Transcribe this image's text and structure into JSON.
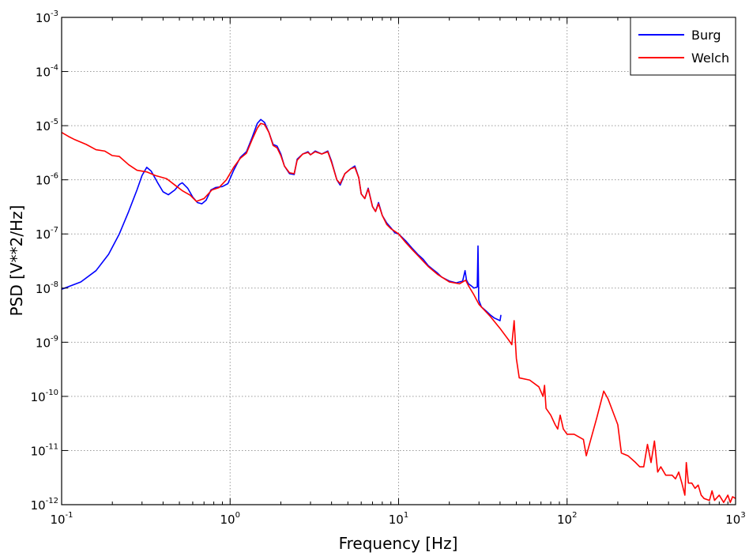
{
  "chart_data": {
    "type": "line",
    "title": "",
    "xlabel": "Frequency [Hz]",
    "ylabel": "PSD [V**2/Hz]",
    "xscale": "log",
    "yscale": "log",
    "xlim": [
      0.1,
      1000
    ],
    "ylim": [
      1e-12,
      0.001
    ],
    "grid": true,
    "legend_position": "top-right",
    "x_ticks": [
      {
        "base": "10",
        "exp": "-1",
        "value": 0.1
      },
      {
        "base": "10",
        "exp": "0",
        "value": 1
      },
      {
        "base": "10",
        "exp": "1",
        "value": 10
      },
      {
        "base": "10",
        "exp": "2",
        "value": 100
      },
      {
        "base": "10",
        "exp": "3",
        "value": 1000
      }
    ],
    "y_ticks": [
      {
        "base": "10",
        "exp": "-3",
        "value": 0.001
      },
      {
        "base": "10",
        "exp": "-4",
        "value": 0.0001
      },
      {
        "base": "10",
        "exp": "-5",
        "value": 1e-05
      },
      {
        "base": "10",
        "exp": "-6",
        "value": 1e-06
      },
      {
        "base": "10",
        "exp": "-7",
        "value": 1e-07
      },
      {
        "base": "10",
        "exp": "-8",
        "value": 1e-08
      },
      {
        "base": "10",
        "exp": "-9",
        "value": 1e-09
      },
      {
        "base": "10",
        "exp": "-10",
        "value": 1e-10
      },
      {
        "base": "10",
        "exp": "-11",
        "value": 1e-11
      },
      {
        "base": "10",
        "exp": "-12",
        "value": 1e-12
      }
    ],
    "series": [
      {
        "name": "Burg",
        "color": "#0000ff",
        "points": [
          [
            0.1,
            9.5e-09
          ],
          [
            0.13,
            1.3e-08
          ],
          [
            0.16,
            2.1e-08
          ],
          [
            0.19,
            4.2e-08
          ],
          [
            0.22,
            1e-07
          ],
          [
            0.25,
            2.6e-07
          ],
          [
            0.28,
            6.5e-07
          ],
          [
            0.3,
            1.2e-06
          ],
          [
            0.32,
            1.7e-06
          ],
          [
            0.34,
            1.45e-06
          ],
          [
            0.37,
            9e-07
          ],
          [
            0.4,
            6e-07
          ],
          [
            0.43,
            5.3e-07
          ],
          [
            0.47,
            6.5e-07
          ],
          [
            0.5,
            8.2e-07
          ],
          [
            0.52,
            8.8e-07
          ],
          [
            0.56,
            7e-07
          ],
          [
            0.6,
            4.8e-07
          ],
          [
            0.64,
            3.8e-07
          ],
          [
            0.68,
            3.6e-07
          ],
          [
            0.72,
            4.2e-07
          ],
          [
            0.77,
            6.5e-07
          ],
          [
            0.82,
            7.2e-07
          ],
          [
            0.9,
            7.5e-07
          ],
          [
            0.97,
            8.5e-07
          ],
          [
            1.05,
            1.5e-06
          ],
          [
            1.15,
            2.6e-06
          ],
          [
            1.25,
            3.3e-06
          ],
          [
            1.35,
            6e-06
          ],
          [
            1.45,
            1.1e-05
          ],
          [
            1.52,
            1.3e-05
          ],
          [
            1.6,
            1.15e-05
          ],
          [
            1.7,
            7.5e-06
          ],
          [
            1.8,
            4.5e-06
          ],
          [
            1.9,
            4.2e-06
          ],
          [
            2.0,
            3e-06
          ],
          [
            2.1,
            1.8e-06
          ],
          [
            2.25,
            1.3e-06
          ],
          [
            2.4,
            1.25e-06
          ],
          [
            2.5,
            2.4e-06
          ],
          [
            2.7,
            3e-06
          ],
          [
            2.9,
            3.3e-06
          ],
          [
            3.0,
            2.9e-06
          ],
          [
            3.2,
            3.4e-06
          ],
          [
            3.5,
            3e-06
          ],
          [
            3.8,
            3.4e-06
          ],
          [
            4.0,
            2.2e-06
          ],
          [
            4.3,
            1e-06
          ],
          [
            4.5,
            8e-07
          ],
          [
            4.8,
            1.3e-06
          ],
          [
            5.2,
            1.6e-06
          ],
          [
            5.5,
            1.8e-06
          ],
          [
            5.8,
            1.1e-06
          ],
          [
            6.0,
            5.5e-07
          ],
          [
            6.3,
            4.5e-07
          ],
          [
            6.6,
            7e-07
          ],
          [
            7.0,
            3.2e-07
          ],
          [
            7.3,
            2.6e-07
          ],
          [
            7.6,
            3.8e-07
          ],
          [
            8.0,
            2.2e-07
          ],
          [
            8.5,
            1.6e-07
          ],
          [
            9.0,
            1.3e-07
          ],
          [
            9.5,
            1.05e-07
          ],
          [
            10.0,
            1e-07
          ],
          [
            11.0,
            7.5e-08
          ],
          [
            12.0,
            5.5e-08
          ],
          [
            13.0,
            4.2e-08
          ],
          [
            14.0,
            3.4e-08
          ],
          [
            15.0,
            2.6e-08
          ],
          [
            16.0,
            2.2e-08
          ],
          [
            17.0,
            1.9e-08
          ],
          [
            18.0,
            1.6e-08
          ],
          [
            20.0,
            1.35e-08
          ],
          [
            22.0,
            1.25e-08
          ],
          [
            24.0,
            1.35e-08
          ],
          [
            24.8,
            2.1e-08
          ],
          [
            25.3,
            1.4e-08
          ],
          [
            26.0,
            1.2e-08
          ],
          [
            27.0,
            1.1e-08
          ],
          [
            28.0,
            1e-08
          ],
          [
            29.3,
            1.05e-08
          ],
          [
            29.6,
            6e-08
          ],
          [
            29.9,
            6e-09
          ],
          [
            31.0,
            4.5e-09
          ],
          [
            33.0,
            3.8e-09
          ],
          [
            35.0,
            3.2e-09
          ],
          [
            37.0,
            2.8e-09
          ],
          [
            39.0,
            2.6e-09
          ],
          [
            40.0,
            2.5e-09
          ],
          [
            40.5,
            3.2e-09
          ]
        ]
      },
      {
        "name": "Welch",
        "color": "#ff0000",
        "points": [
          [
            0.1,
            7.5e-06
          ],
          [
            0.11,
            6.3e-06
          ],
          [
            0.12,
            5.5e-06
          ],
          [
            0.14,
            4.5e-06
          ],
          [
            0.16,
            3.6e-06
          ],
          [
            0.18,
            3.4e-06
          ],
          [
            0.2,
            2.8e-06
          ],
          [
            0.22,
            2.7e-06
          ],
          [
            0.25,
            1.9e-06
          ],
          [
            0.28,
            1.5e-06
          ],
          [
            0.32,
            1.4e-06
          ],
          [
            0.36,
            1.2e-06
          ],
          [
            0.42,
            1.05e-06
          ],
          [
            0.47,
            8e-07
          ],
          [
            0.52,
            6.3e-07
          ],
          [
            0.58,
            5.2e-07
          ],
          [
            0.63,
            4e-07
          ],
          [
            0.7,
            4.5e-07
          ],
          [
            0.78,
            6.5e-07
          ],
          [
            0.86,
            7.2e-07
          ],
          [
            0.95,
            1e-06
          ],
          [
            1.05,
            1.7e-06
          ],
          [
            1.15,
            2.5e-06
          ],
          [
            1.25,
            3.1e-06
          ],
          [
            1.35,
            5.5e-06
          ],
          [
            1.45,
            9e-06
          ],
          [
            1.52,
            1.1e-05
          ],
          [
            1.6,
            1.05e-05
          ],
          [
            1.7,
            7.5e-06
          ],
          [
            1.8,
            4.3e-06
          ],
          [
            1.9,
            3.9e-06
          ],
          [
            2.0,
            2.8e-06
          ],
          [
            2.1,
            1.8e-06
          ],
          [
            2.25,
            1.35e-06
          ],
          [
            2.4,
            1.3e-06
          ],
          [
            2.5,
            2.3e-06
          ],
          [
            2.7,
            3e-06
          ],
          [
            2.9,
            3.2e-06
          ],
          [
            3.0,
            2.9e-06
          ],
          [
            3.2,
            3.3e-06
          ],
          [
            3.5,
            3e-06
          ],
          [
            3.8,
            3.3e-06
          ],
          [
            4.0,
            2.1e-06
          ],
          [
            4.3,
            1e-06
          ],
          [
            4.5,
            8.5e-07
          ],
          [
            4.8,
            1.3e-06
          ],
          [
            5.2,
            1.6e-06
          ],
          [
            5.5,
            1.7e-06
          ],
          [
            5.8,
            1.1e-06
          ],
          [
            6.0,
            5.5e-07
          ],
          [
            6.3,
            4.5e-07
          ],
          [
            6.6,
            6.8e-07
          ],
          [
            7.0,
            3.2e-07
          ],
          [
            7.3,
            2.6e-07
          ],
          [
            7.6,
            3.6e-07
          ],
          [
            8.0,
            2.2e-07
          ],
          [
            8.5,
            1.5e-07
          ],
          [
            9.0,
            1.25e-07
          ],
          [
            10.0,
            1e-07
          ],
          [
            11.0,
            7e-08
          ],
          [
            12.0,
            5.2e-08
          ],
          [
            13.0,
            4e-08
          ],
          [
            15.0,
            2.5e-08
          ],
          [
            17.0,
            1.8e-08
          ],
          [
            20.0,
            1.3e-08
          ],
          [
            23.0,
            1.2e-08
          ],
          [
            25.0,
            1.4e-08
          ],
          [
            26.0,
            1.1e-08
          ],
          [
            28.0,
            7.5e-09
          ],
          [
            30.0,
            5e-09
          ],
          [
            35.0,
            3e-09
          ],
          [
            40.0,
            1.8e-09
          ],
          [
            45.0,
            1.1e-09
          ],
          [
            47.0,
            9e-10
          ],
          [
            48.5,
            2.5e-09
          ],
          [
            50.0,
            5e-10
          ],
          [
            52.0,
            2.2e-10
          ],
          [
            60.0,
            2e-10
          ],
          [
            68.0,
            1.5e-10
          ],
          [
            72.0,
            1e-10
          ],
          [
            73.5,
            1.6e-10
          ],
          [
            75.0,
            6e-11
          ],
          [
            80.0,
            4.5e-11
          ],
          [
            85.0,
            3e-11
          ],
          [
            88.0,
            2.5e-11
          ],
          [
            91.0,
            4.5e-11
          ],
          [
            95.0,
            2.5e-11
          ],
          [
            100.0,
            2e-11
          ],
          [
            110.0,
            2e-11
          ],
          [
            125.0,
            1.6e-11
          ],
          [
            130.0,
            8e-12
          ],
          [
            150.0,
            4e-11
          ],
          [
            165.0,
            1.25e-10
          ],
          [
            175.0,
            9e-11
          ],
          [
            200.0,
            3e-11
          ],
          [
            210.0,
            9e-12
          ],
          [
            230.0,
            8e-12
          ],
          [
            255.0,
            6e-12
          ],
          [
            270.0,
            5e-12
          ],
          [
            285.0,
            5e-12
          ],
          [
            300.0,
            1.3e-11
          ],
          [
            315.0,
            6e-12
          ],
          [
            330.0,
            1.5e-11
          ],
          [
            345.0,
            4e-12
          ],
          [
            360.0,
            5e-12
          ],
          [
            385.0,
            3.5e-12
          ],
          [
            420.0,
            3.5e-12
          ],
          [
            440.0,
            3e-12
          ],
          [
            460.0,
            4e-12
          ],
          [
            480.0,
            2.5e-12
          ],
          [
            500.0,
            1.5e-12
          ],
          [
            510.0,
            6e-12
          ],
          [
            525.0,
            2.5e-12
          ],
          [
            550.0,
            2.5e-12
          ],
          [
            575.0,
            2e-12
          ],
          [
            600.0,
            2.3e-12
          ],
          [
            625.0,
            1.5e-12
          ],
          [
            650.0,
            1.3e-12
          ],
          [
            700.0,
            1.2e-12
          ],
          [
            725.0,
            1.8e-12
          ],
          [
            750.0,
            1.2e-12
          ],
          [
            800.0,
            1.5e-12
          ],
          [
            850.0,
            1.1e-12
          ],
          [
            900.0,
            1.5e-12
          ],
          [
            930.0,
            1.1e-12
          ],
          [
            960.0,
            1.4e-12
          ],
          [
            1000.0,
            1.3e-12
          ]
        ]
      }
    ]
  }
}
